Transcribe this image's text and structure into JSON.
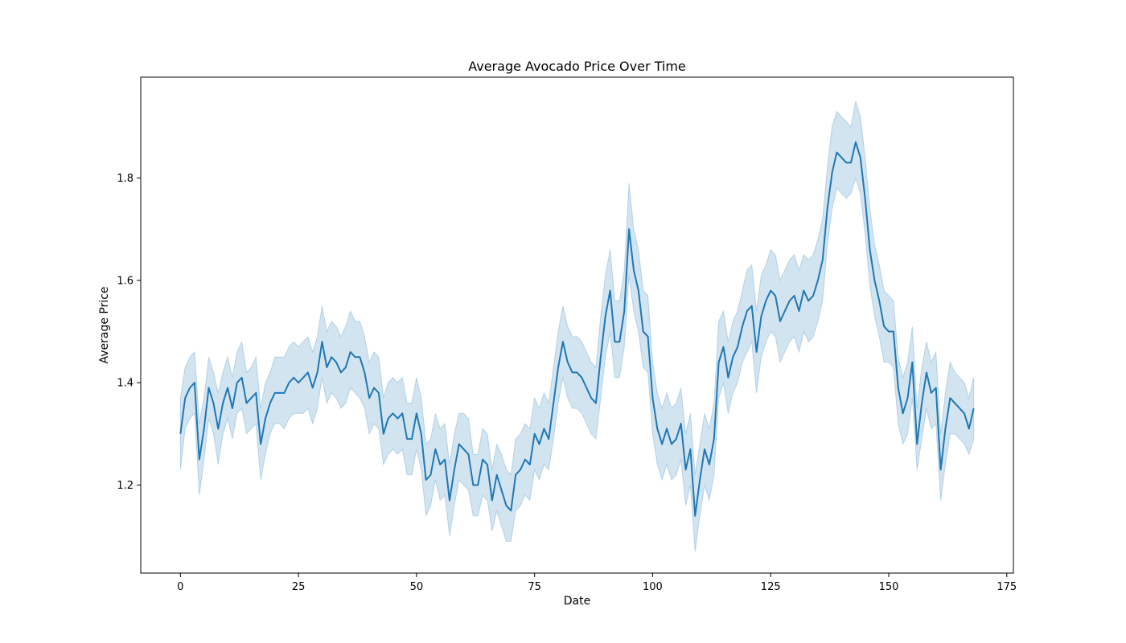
{
  "chart_data": {
    "type": "line",
    "title": "Average Avocado Price Over Time",
    "xlabel": "Date",
    "ylabel": "Average Price",
    "xlim": [
      -8.4,
      176.4
    ],
    "ylim": [
      1.028,
      1.997
    ],
    "xticks": [
      0,
      25,
      50,
      75,
      100,
      125,
      150,
      175
    ],
    "yticks": [
      1.2,
      1.4,
      1.6,
      1.8
    ],
    "ytick_labels": [
      "1.2",
      "1.4",
      "1.6",
      "1.8"
    ],
    "grid": false,
    "colors": {
      "line": "#1f77b4",
      "band": "#1f77b4",
      "band_opacity": 0.2
    },
    "series": [
      {
        "x": [
          0,
          1,
          2,
          3,
          4,
          5,
          6,
          7,
          8,
          9,
          10,
          11,
          12,
          13,
          14,
          15,
          16,
          17,
          18,
          19,
          20,
          21,
          22,
          23,
          24,
          25,
          26,
          27,
          28,
          29,
          30,
          31,
          32,
          33,
          34,
          35,
          36,
          37,
          38,
          39,
          40,
          41,
          42,
          43,
          44,
          45,
          46,
          47,
          48,
          49,
          50,
          51,
          52,
          53,
          54,
          55,
          56,
          57,
          58,
          59,
          60,
          61,
          62,
          63,
          64,
          65,
          66,
          67,
          68,
          69,
          70,
          71,
          72,
          73,
          74,
          75,
          76,
          77,
          78,
          79,
          80,
          81,
          82,
          83,
          84,
          85,
          86,
          87,
          88,
          89,
          90,
          91,
          92,
          93,
          94,
          95,
          96,
          97,
          98,
          99,
          100,
          101,
          102,
          103,
          104,
          105,
          106,
          107,
          108,
          109,
          110,
          111,
          112,
          113,
          114,
          115,
          116,
          117,
          118,
          119,
          120,
          121,
          122,
          123,
          124,
          125,
          126,
          127,
          128,
          129,
          130,
          131,
          132,
          133,
          134,
          135,
          136,
          137,
          138,
          139,
          140,
          141,
          142,
          143,
          144,
          145,
          146,
          147,
          148,
          149,
          150,
          151,
          152,
          153,
          154,
          155,
          156,
          157,
          158,
          159,
          160,
          161,
          162,
          163,
          164,
          165,
          166,
          167,
          168
        ],
        "y": [
          1.3,
          1.37,
          1.39,
          1.4,
          1.25,
          1.31,
          1.39,
          1.36,
          1.31,
          1.36,
          1.39,
          1.35,
          1.4,
          1.41,
          1.36,
          1.37,
          1.38,
          1.28,
          1.33,
          1.36,
          1.38,
          1.38,
          1.38,
          1.4,
          1.41,
          1.4,
          1.41,
          1.42,
          1.39,
          1.42,
          1.48,
          1.43,
          1.45,
          1.44,
          1.42,
          1.43,
          1.46,
          1.45,
          1.45,
          1.42,
          1.37,
          1.39,
          1.38,
          1.3,
          1.33,
          1.34,
          1.33,
          1.34,
          1.29,
          1.29,
          1.34,
          1.3,
          1.21,
          1.22,
          1.27,
          1.24,
          1.25,
          1.17,
          1.23,
          1.28,
          1.27,
          1.26,
          1.2,
          1.2,
          1.25,
          1.24,
          1.17,
          1.22,
          1.19,
          1.16,
          1.15,
          1.22,
          1.23,
          1.25,
          1.24,
          1.3,
          1.28,
          1.31,
          1.29,
          1.36,
          1.43,
          1.48,
          1.44,
          1.42,
          1.42,
          1.41,
          1.39,
          1.37,
          1.36,
          1.45,
          1.53,
          1.58,
          1.48,
          1.48,
          1.54,
          1.7,
          1.62,
          1.58,
          1.5,
          1.49,
          1.37,
          1.31,
          1.28,
          1.31,
          1.28,
          1.29,
          1.32,
          1.23,
          1.27,
          1.14,
          1.21,
          1.27,
          1.24,
          1.29,
          1.44,
          1.47,
          1.41,
          1.45,
          1.47,
          1.51,
          1.54,
          1.55,
          1.46,
          1.53,
          1.56,
          1.58,
          1.57,
          1.52,
          1.54,
          1.56,
          1.57,
          1.54,
          1.58,
          1.56,
          1.57,
          1.6,
          1.64,
          1.74,
          1.81,
          1.85,
          1.84,
          1.83,
          1.83,
          1.87,
          1.84,
          1.76,
          1.66,
          1.6,
          1.56,
          1.51,
          1.5,
          1.5,
          1.39,
          1.34,
          1.37,
          1.44,
          1.28,
          1.36,
          1.42,
          1.38,
          1.39,
          1.23,
          1.31,
          1.37,
          1.36,
          1.35,
          1.34,
          1.31,
          1.35
        ],
        "ci_lower": [
          1.23,
          1.31,
          1.33,
          1.34,
          1.18,
          1.25,
          1.33,
          1.3,
          1.24,
          1.3,
          1.33,
          1.29,
          1.34,
          1.35,
          1.3,
          1.31,
          1.32,
          1.21,
          1.26,
          1.3,
          1.32,
          1.32,
          1.31,
          1.33,
          1.34,
          1.34,
          1.34,
          1.35,
          1.32,
          1.35,
          1.41,
          1.36,
          1.38,
          1.37,
          1.35,
          1.36,
          1.39,
          1.38,
          1.37,
          1.35,
          1.3,
          1.32,
          1.31,
          1.24,
          1.26,
          1.27,
          1.26,
          1.27,
          1.22,
          1.22,
          1.27,
          1.23,
          1.14,
          1.16,
          1.21,
          1.17,
          1.18,
          1.1,
          1.16,
          1.21,
          1.2,
          1.19,
          1.14,
          1.14,
          1.18,
          1.17,
          1.11,
          1.15,
          1.12,
          1.09,
          1.09,
          1.15,
          1.16,
          1.18,
          1.17,
          1.23,
          1.21,
          1.24,
          1.23,
          1.29,
          1.36,
          1.41,
          1.37,
          1.35,
          1.35,
          1.34,
          1.32,
          1.3,
          1.29,
          1.37,
          1.45,
          1.5,
          1.41,
          1.41,
          1.47,
          1.61,
          1.54,
          1.5,
          1.43,
          1.42,
          1.3,
          1.24,
          1.21,
          1.24,
          1.21,
          1.22,
          1.25,
          1.16,
          1.2,
          1.07,
          1.14,
          1.2,
          1.17,
          1.22,
          1.37,
          1.4,
          1.34,
          1.38,
          1.4,
          1.44,
          1.46,
          1.48,
          1.38,
          1.45,
          1.48,
          1.5,
          1.49,
          1.44,
          1.46,
          1.48,
          1.49,
          1.46,
          1.5,
          1.48,
          1.49,
          1.52,
          1.56,
          1.67,
          1.74,
          1.78,
          1.77,
          1.76,
          1.77,
          1.8,
          1.77,
          1.69,
          1.59,
          1.53,
          1.49,
          1.44,
          1.44,
          1.43,
          1.32,
          1.28,
          1.3,
          1.37,
          1.23,
          1.29,
          1.35,
          1.31,
          1.32,
          1.17,
          1.24,
          1.3,
          1.3,
          1.29,
          1.28,
          1.26,
          1.29
        ],
        "ci_upper": [
          1.37,
          1.43,
          1.45,
          1.46,
          1.32,
          1.37,
          1.45,
          1.42,
          1.38,
          1.42,
          1.45,
          1.41,
          1.46,
          1.48,
          1.42,
          1.43,
          1.45,
          1.35,
          1.4,
          1.42,
          1.45,
          1.45,
          1.45,
          1.47,
          1.48,
          1.47,
          1.48,
          1.49,
          1.46,
          1.49,
          1.55,
          1.5,
          1.52,
          1.51,
          1.49,
          1.51,
          1.54,
          1.52,
          1.52,
          1.49,
          1.44,
          1.46,
          1.45,
          1.37,
          1.4,
          1.41,
          1.4,
          1.41,
          1.36,
          1.36,
          1.41,
          1.37,
          1.28,
          1.29,
          1.34,
          1.31,
          1.32,
          1.24,
          1.3,
          1.34,
          1.34,
          1.33,
          1.26,
          1.26,
          1.31,
          1.3,
          1.23,
          1.28,
          1.26,
          1.23,
          1.22,
          1.29,
          1.3,
          1.32,
          1.31,
          1.37,
          1.35,
          1.38,
          1.36,
          1.43,
          1.5,
          1.55,
          1.51,
          1.49,
          1.49,
          1.48,
          1.46,
          1.44,
          1.43,
          1.53,
          1.61,
          1.66,
          1.56,
          1.56,
          1.62,
          1.79,
          1.7,
          1.66,
          1.58,
          1.57,
          1.44,
          1.38,
          1.35,
          1.38,
          1.35,
          1.36,
          1.39,
          1.3,
          1.34,
          1.22,
          1.28,
          1.34,
          1.31,
          1.36,
          1.52,
          1.54,
          1.48,
          1.52,
          1.54,
          1.58,
          1.62,
          1.63,
          1.54,
          1.61,
          1.63,
          1.66,
          1.65,
          1.6,
          1.62,
          1.64,
          1.65,
          1.62,
          1.65,
          1.64,
          1.65,
          1.68,
          1.72,
          1.82,
          1.9,
          1.93,
          1.92,
          1.91,
          1.9,
          1.95,
          1.92,
          1.84,
          1.74,
          1.67,
          1.63,
          1.58,
          1.57,
          1.56,
          1.45,
          1.41,
          1.44,
          1.51,
          1.35,
          1.43,
          1.48,
          1.44,
          1.46,
          1.3,
          1.38,
          1.44,
          1.42,
          1.41,
          1.4,
          1.37,
          1.41
        ]
      }
    ]
  }
}
